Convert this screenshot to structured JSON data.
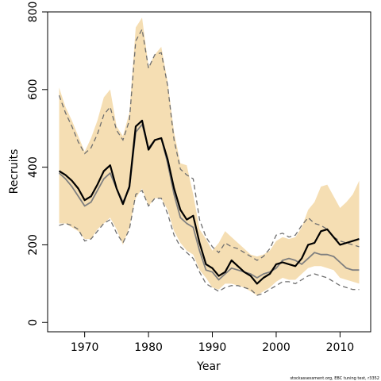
{
  "chart_data": {
    "type": "line",
    "xlabel": "Year",
    "ylabel": "Recruits",
    "xlim": [
      1964.2,
      2014.8
    ],
    "ylim": [
      -24,
      800
    ],
    "x_ticks": [
      1970,
      1980,
      1990,
      2000,
      2010
    ],
    "y_ticks": [
      0,
      200,
      400,
      600,
      800
    ],
    "footnote": "stockassessment.org, EBC tuning test, r3352",
    "colors": {
      "band": "#f5deb3",
      "estimate": "#000000",
      "previous": "#7f7f7f",
      "previous_ci": "#6f6f6f"
    },
    "years": [
      1966,
      1967,
      1968,
      1969,
      1970,
      1971,
      1972,
      1973,
      1974,
      1975,
      1976,
      1977,
      1978,
      1979,
      1980,
      1981,
      1982,
      1983,
      1984,
      1985,
      1986,
      1987,
      1988,
      1989,
      1990,
      1991,
      1992,
      1993,
      1994,
      1995,
      1996,
      1997,
      1998,
      1999,
      2000,
      2001,
      2002,
      2003,
      2004,
      2005,
      2006,
      2007,
      2008,
      2009,
      2010,
      2011,
      2012,
      2013
    ],
    "series": [
      {
        "style": "band",
        "upper": [
          605,
          555,
          520,
          480,
          440,
          475,
          520,
          580,
          600,
          505,
          480,
          540,
          760,
          785,
          660,
          690,
          710,
          620,
          490,
          410,
          405,
          330,
          240,
          215,
          185,
          205,
          235,
          220,
          205,
          190,
          175,
          170,
          175,
          185,
          210,
          220,
          215,
          220,
          245,
          290,
          310,
          350,
          355,
          325,
          295,
          310,
          330,
          365
        ],
        "lower": [
          255,
          255,
          245,
          235,
          215,
          215,
          240,
          255,
          270,
          240,
          200,
          245,
          320,
          345,
          300,
          320,
          320,
          290,
          235,
          205,
          185,
          175,
          135,
          115,
          90,
          85,
          100,
          100,
          95,
          90,
          80,
          70,
          80,
          90,
          105,
          115,
          110,
          110,
          125,
          140,
          145,
          145,
          140,
          135,
          115,
          110,
          105,
          100
        ]
      },
      {
        "style": "previous",
        "values": [
          385,
          370,
          350,
          325,
          300,
          310,
          340,
          370,
          385,
          345,
          310,
          345,
          490,
          510,
          450,
          470,
          475,
          410,
          330,
          270,
          255,
          245,
          185,
          135,
          130,
          110,
          125,
          140,
          135,
          130,
          125,
          115,
          125,
          130,
          140,
          160,
          165,
          160,
          150,
          165,
          180,
          175,
          175,
          170,
          155,
          140,
          135,
          135
        ]
      },
      {
        "style": "previous-ci",
        "upper": [
          585,
          540,
          505,
          465,
          435,
          450,
          485,
          535,
          555,
          495,
          470,
          520,
          725,
          755,
          655,
          690,
          695,
          610,
          470,
          395,
          380,
          370,
          265,
          220,
          195,
          180,
          205,
          195,
          190,
          180,
          170,
          160,
          170,
          190,
          225,
          230,
          220,
          225,
          250,
          270,
          255,
          250,
          240,
          220,
          210,
          205,
          200,
          195
        ],
        "lower": [
          250,
          255,
          250,
          240,
          210,
          215,
          235,
          255,
          265,
          230,
          205,
          240,
          330,
          340,
          300,
          320,
          320,
          280,
          225,
          195,
          180,
          165,
          130,
          100,
          90,
          80,
          90,
          95,
          95,
          90,
          85,
          70,
          75,
          85,
          95,
          105,
          105,
          100,
          110,
          120,
          125,
          120,
          115,
          105,
          95,
          90,
          85,
          85
        ]
      },
      {
        "style": "estimate",
        "values": [
          390,
          380,
          365,
          345,
          315,
          325,
          355,
          390,
          405,
          345,
          305,
          350,
          505,
          520,
          445,
          470,
          475,
          420,
          345,
          290,
          265,
          275,
          205,
          150,
          140,
          120,
          130,
          160,
          145,
          130,
          120,
          100,
          115,
          125,
          150,
          155,
          150,
          145,
          165,
          200,
          205,
          235,
          240,
          220,
          200,
          205,
          210,
          215
        ]
      }
    ]
  }
}
